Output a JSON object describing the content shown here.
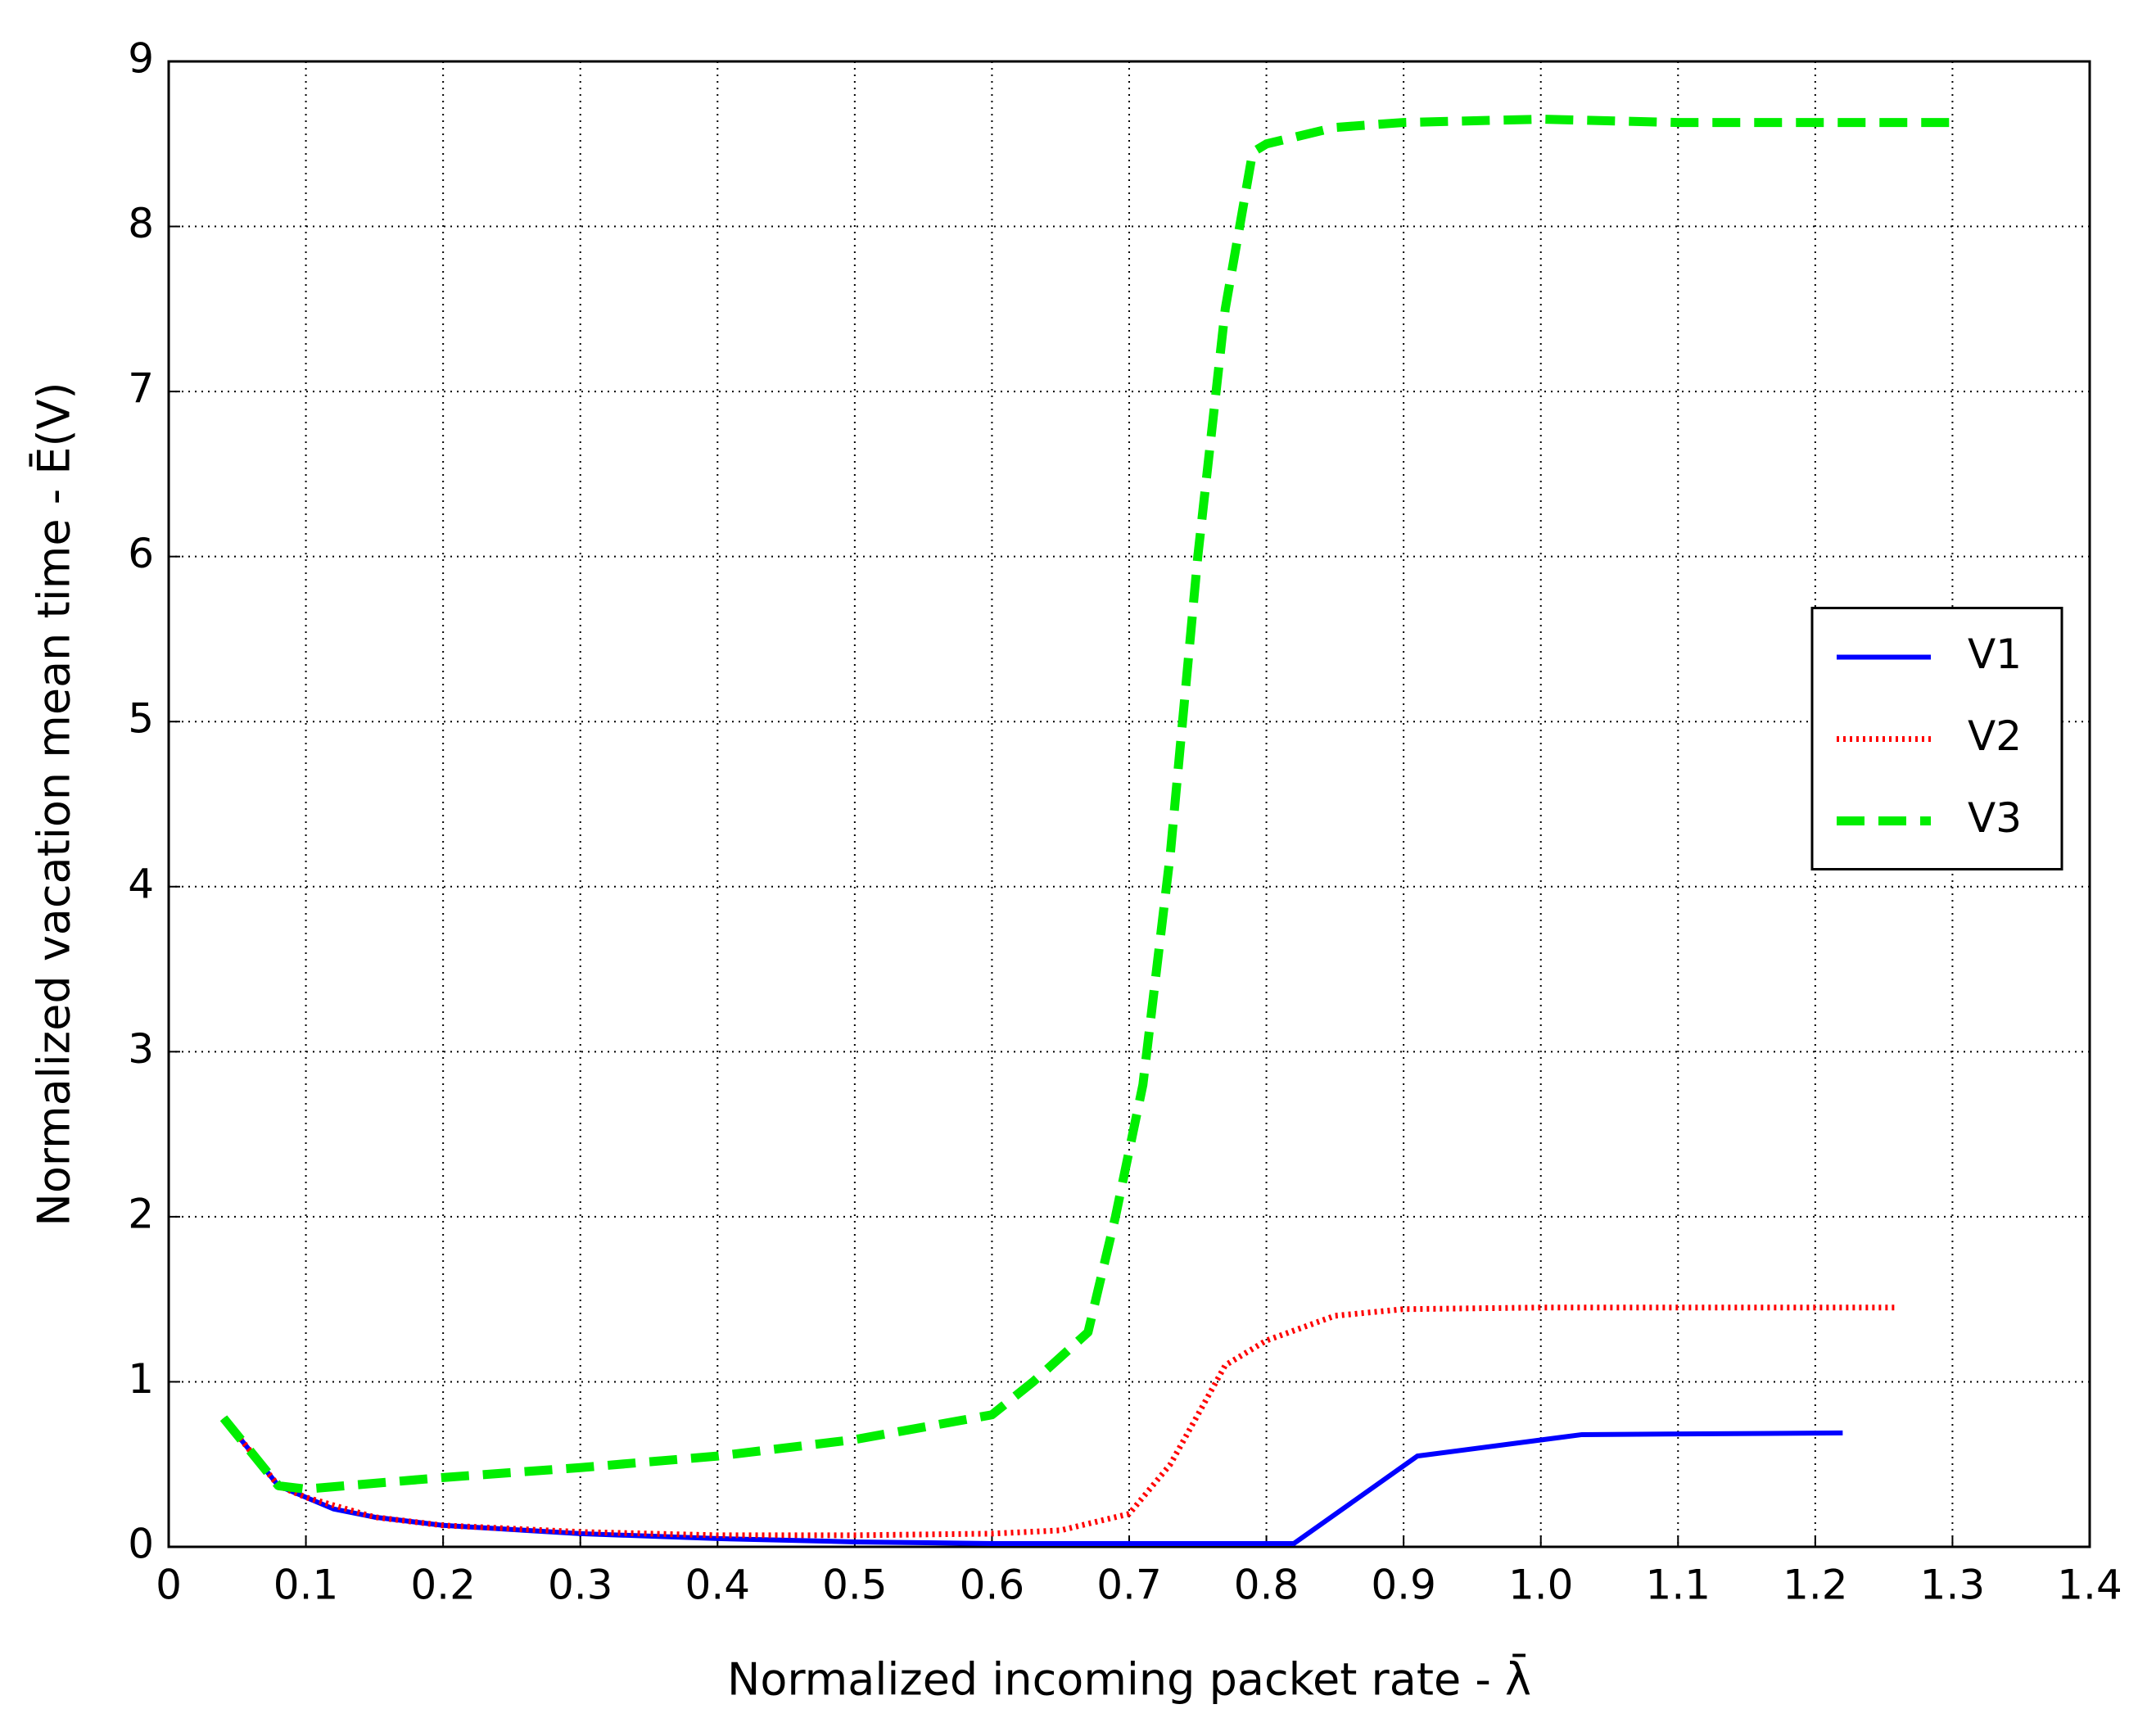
{
  "chart_data": {
    "type": "line",
    "xlabel": "Normalized incoming packet rate - λ̄",
    "ylabel": "Normalized vacation mean time - Ē(V)",
    "xlim": [
      0,
      1.4
    ],
    "ylim": [
      0,
      9
    ],
    "xticks": [
      0,
      0.1,
      0.2,
      0.3,
      0.4,
      0.5,
      0.6,
      0.7,
      0.8,
      0.9,
      {
        "value": 1,
        "label": "1.0"
      },
      1.1,
      1.2,
      1.3,
      1.4
    ],
    "yticks": [
      0,
      1,
      2,
      3,
      4,
      5,
      6,
      7,
      8,
      9
    ],
    "grid": true,
    "legend": "right",
    "series": [
      {
        "name": "V1",
        "color": "#0000ff",
        "linestyle": "solid",
        "x": [
          0.04,
          0.08,
          0.1,
          0.12,
          0.15,
          0.2,
          0.3,
          0.4,
          0.5,
          0.6,
          0.7,
          0.82,
          0.91,
          1.03,
          1.22
        ],
        "values": [
          0.78,
          0.37,
          0.3,
          0.23,
          0.18,
          0.13,
          0.08,
          0.05,
          0.03,
          0.02,
          0.02,
          0.02,
          0.55,
          0.68,
          0.69
        ]
      },
      {
        "name": "V2",
        "color": "#ff0000",
        "linestyle": "dotted",
        "x": [
          0.04,
          0.08,
          0.1,
          0.15,
          0.2,
          0.3,
          0.4,
          0.5,
          0.6,
          0.65,
          0.7,
          0.73,
          0.77,
          0.8,
          0.85,
          0.9,
          1.0,
          1.1,
          1.26
        ],
        "values": [
          0.78,
          0.37,
          0.3,
          0.18,
          0.13,
          0.09,
          0.07,
          0.07,
          0.08,
          0.1,
          0.2,
          0.5,
          1.1,
          1.25,
          1.4,
          1.44,
          1.45,
          1.45,
          1.45
        ]
      },
      {
        "name": "V3",
        "color": "#00ee00",
        "linestyle": "dashed",
        "x": [
          0.04,
          0.08,
          0.1,
          0.2,
          0.3,
          0.4,
          0.5,
          0.6,
          0.63,
          0.67,
          0.69,
          0.71,
          0.73,
          0.75,
          0.77,
          0.79,
          0.8,
          0.85,
          0.9,
          1.0,
          1.1,
          1.3
        ],
        "values": [
          0.78,
          0.37,
          0.35,
          0.42,
          0.48,
          0.55,
          0.65,
          0.8,
          1.0,
          1.3,
          2.0,
          2.8,
          4.2,
          6.0,
          7.5,
          8.45,
          8.5,
          8.6,
          8.63,
          8.65,
          8.63,
          8.63
        ]
      }
    ]
  }
}
